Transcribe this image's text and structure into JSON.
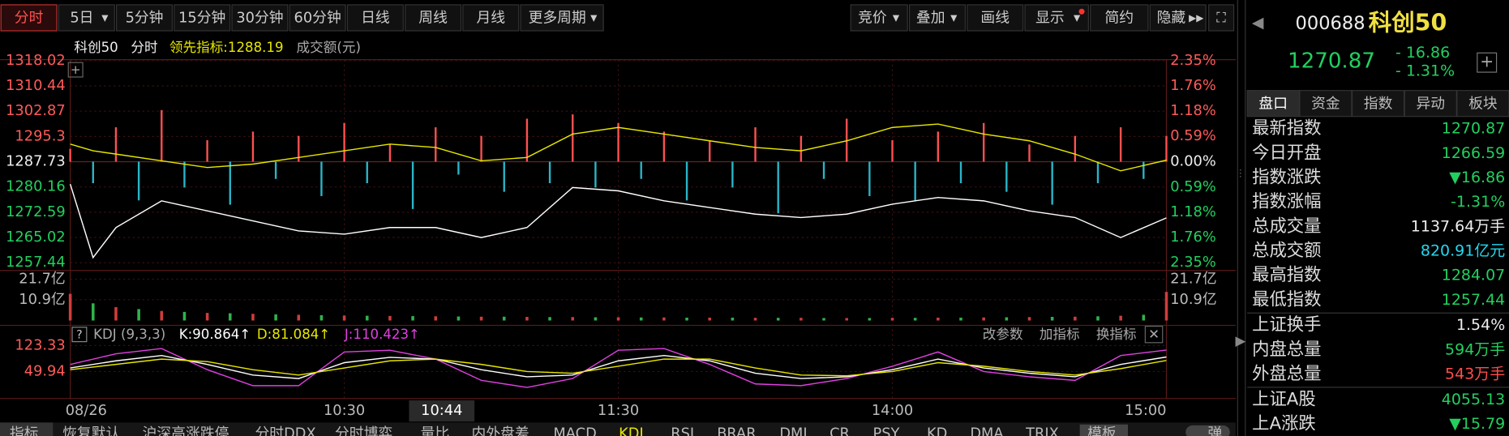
{
  "toolbar": {
    "left": [
      "分时",
      "5日",
      "5分钟",
      "15分钟",
      "30分钟",
      "60分钟",
      "日线",
      "周线",
      "月线",
      "更多周期"
    ],
    "right": [
      "竞价",
      "叠加",
      "画线",
      "显示",
      "简约",
      "隐藏"
    ]
  },
  "legend": {
    "mode": "分时",
    "amount": "成交额(元)"
  },
  "chart_data": [
    {
      "type": "line",
      "xlim": [
        0,
        240
      ],
      "ylim": [
        1257.44,
        1318.02
      ],
      "yticks": [
        1318.02,
        1310.44,
        1302.87,
        1295.3,
        1287.73,
        1280.16,
        1272.59,
        1265.02,
        1257.44
      ],
      "y2lim": [
        -2.35,
        2.35
      ],
      "y2ticks": [
        {
          "value": 2.35,
          "label": "2.35%"
        },
        {
          "value": 1.76,
          "label": "1.76%"
        },
        {
          "value": 1.18,
          "label": "1.18%"
        },
        {
          "value": 0.59,
          "label": "0.59%"
        },
        {
          "value": 0,
          "label": "0.00%"
        },
        {
          "value": -0.59,
          "label": "0.59%"
        },
        {
          "value": -1.18,
          "label": "1.18%"
        },
        {
          "value": -1.76,
          "label": "1.76%"
        },
        {
          "value": -2.35,
          "label": "2.35%"
        }
      ],
      "grid": true,
      "x": [
        0,
        5,
        10,
        20,
        30,
        40,
        50,
        60,
        70,
        80,
        90,
        100,
        110,
        120,
        130,
        140,
        150,
        160,
        170,
        180,
        190,
        200,
        210,
        220,
        230,
        240
      ],
      "series": [
        {
          "name": "科创50",
          "color": "#ffffff",
          "values": [
            1281,
            1259,
            1268,
            1276,
            1273,
            1270,
            1267,
            1266,
            1268,
            1268,
            1265,
            1268,
            1280,
            1279,
            1276,
            1274,
            1272,
            1271,
            1272,
            1275,
            1277,
            1276,
            1273,
            1271,
            1265,
            1270.87
          ]
        },
        {
          "name": "领先指标:1288.19",
          "color": "#e6e600",
          "values": [
            1293,
            1291,
            1290,
            1288,
            1286,
            1287,
            1289,
            1291,
            1293,
            1292,
            1288,
            1289,
            1296,
            1298,
            1296,
            1294,
            1292,
            1291,
            1294,
            1298,
            1299,
            1296,
            1294,
            1290,
            1285,
            1288.19
          ]
        }
      ],
      "bars": {
        "axis": "y2",
        "up_color": "#ff5050",
        "down_color": "#2ab5c8",
        "x": [
          0,
          5,
          10,
          15,
          20,
          25,
          30,
          35,
          40,
          45,
          50,
          55,
          60,
          65,
          70,
          75,
          80,
          85,
          90,
          95,
          100,
          105,
          110,
          115,
          120,
          125,
          130,
          135,
          140,
          145,
          150,
          155,
          160,
          165,
          170,
          175,
          180,
          185,
          190,
          195,
          200,
          205,
          210,
          215,
          220,
          225,
          230,
          235,
          240
        ],
        "values": [
          0.3,
          -0.5,
          0.8,
          -0.9,
          1.2,
          -0.6,
          0.5,
          -1.0,
          0.7,
          -0.4,
          0.6,
          -0.8,
          0.9,
          -0.5,
          0.4,
          -1.1,
          0.8,
          -0.3,
          0.6,
          -0.7,
          1.0,
          -0.5,
          1.1,
          -0.6,
          0.9,
          -0.4,
          0.7,
          -0.9,
          0.5,
          -0.6,
          0.8,
          -1.2,
          0.6,
          -0.4,
          1.0,
          -0.8,
          0.5,
          -0.9,
          0.7,
          -0.5,
          0.9,
          -0.7,
          0.4,
          -1.0,
          0.6,
          -0.5,
          0.8,
          -0.4,
          0.6
        ]
      }
    },
    {
      "type": "bar",
      "xlim": [
        0,
        240
      ],
      "ylim": [
        0,
        21.7
      ],
      "yticks": [
        {
          "value": 21.7,
          "label": "21.7亿"
        },
        {
          "value": 10.9,
          "label": "10.9亿"
        }
      ],
      "up_color": "#d03c3c",
      "down_color": "#2fb34a",
      "x": [
        0,
        5,
        10,
        15,
        20,
        25,
        30,
        35,
        40,
        45,
        50,
        55,
        60,
        65,
        70,
        75,
        80,
        85,
        90,
        95,
        100,
        105,
        110,
        115,
        120,
        125,
        130,
        135,
        140,
        145,
        150,
        155,
        160,
        165,
        170,
        175,
        180,
        185,
        190,
        195,
        200,
        205,
        210,
        215,
        220,
        225,
        230,
        235,
        240
      ],
      "values": [
        14,
        9,
        7,
        6,
        5,
        4.5,
        4,
        3.8,
        3.5,
        3.2,
        3,
        2.8,
        2.6,
        2.5,
        2.4,
        2.3,
        2.2,
        2.1,
        2,
        2,
        1.9,
        1.8,
        1.8,
        1.7,
        1.7,
        1.6,
        1.6,
        1.5,
        1.5,
        1.5,
        1.4,
        1.4,
        1.4,
        1.3,
        1.3,
        1.3,
        1.4,
        1.4,
        1.5,
        1.5,
        1.6,
        1.7,
        1.8,
        1.9,
        2,
        2.2,
        2.5,
        3,
        15
      ]
    },
    {
      "type": "line",
      "title": "KDJ (9,3,3)",
      "xlim": [
        0,
        240
      ],
      "xticks": [
        {
          "value": 0,
          "label": "08/26"
        },
        {
          "value": 60,
          "label": "10:30"
        },
        {
          "value": 120,
          "label": "11:30"
        },
        {
          "value": 180,
          "label": "14:00"
        },
        {
          "value": 240,
          "label": "15:00"
        }
      ],
      "ylim": [
        -23.45,
        123.33
      ],
      "yticks": [
        123.33,
        49.94
      ],
      "x": [
        0,
        10,
        20,
        30,
        40,
        50,
        60,
        70,
        80,
        90,
        100,
        110,
        120,
        130,
        140,
        150,
        160,
        170,
        180,
        190,
        200,
        210,
        220,
        230,
        240
      ],
      "series": [
        {
          "name": "K:90.864↑",
          "color": "#ffffff",
          "values": [
            60,
            80,
            95,
            70,
            40,
            30,
            75,
            90,
            85,
            55,
            35,
            40,
            80,
            95,
            80,
            45,
            30,
            35,
            55,
            85,
            60,
            45,
            35,
            70,
            90.864
          ]
        },
        {
          "name": "D:81.084↑",
          "color": "#e6e600",
          "values": [
            55,
            70,
            85,
            78,
            55,
            40,
            60,
            80,
            85,
            70,
            50,
            45,
            65,
            85,
            85,
            60,
            40,
            38,
            50,
            75,
            65,
            50,
            40,
            58,
            81.084
          ]
        },
        {
          "name": "J:110.423↑",
          "color": "#e040e0",
          "values": [
            70,
            100,
            115,
            55,
            10,
            10,
            105,
            110,
            85,
            25,
            5,
            30,
            110,
            115,
            70,
            15,
            10,
            30,
            65,
            105,
            50,
            35,
            25,
            95,
            110.423
          ]
        }
      ]
    }
  ],
  "kdj_tools": [
    "改参数",
    "加指标",
    "换指标"
  ],
  "time_cursor": "10:44",
  "tabs": [
    "指标",
    "恢复默认",
    "沪深高涨跌停",
    "分时DDX",
    "分时博弈",
    "量比",
    "内外盘差",
    "MACD",
    "KDJ",
    "RSI",
    "BRAR",
    "DMI",
    "CR",
    "PSY",
    "KD",
    "DMA",
    "TRIX",
    "模板",
    "弹"
  ],
  "quote": {
    "code": "000688",
    "name": "科创50",
    "price": "1270.87",
    "change": "- 16.86",
    "pct": "- 1.31%",
    "tabs": [
      "盘口",
      "资金",
      "指数",
      "异动",
      "板块"
    ],
    "rows": [
      [
        "最新指数",
        "1270.87"
      ],
      [
        "今日开盘",
        "1266.59"
      ],
      [
        "指数涨跌",
        "▼16.86"
      ],
      [
        "指数涨幅",
        "-1.31%"
      ],
      [
        "总成交量",
        "1137.64万手"
      ],
      [
        "总成交额",
        "820.91亿元"
      ],
      [
        "最高指数",
        "1284.07"
      ],
      [
        "最低指数",
        "1257.44"
      ],
      [
        "上证换手",
        "1.54%"
      ],
      [
        "内盘总量",
        "594万手"
      ],
      [
        "外盘总量",
        "543万手"
      ],
      [
        "上证A股",
        "4055.13"
      ],
      [
        "上A涨跌",
        "▼15.79"
      ]
    ]
  }
}
